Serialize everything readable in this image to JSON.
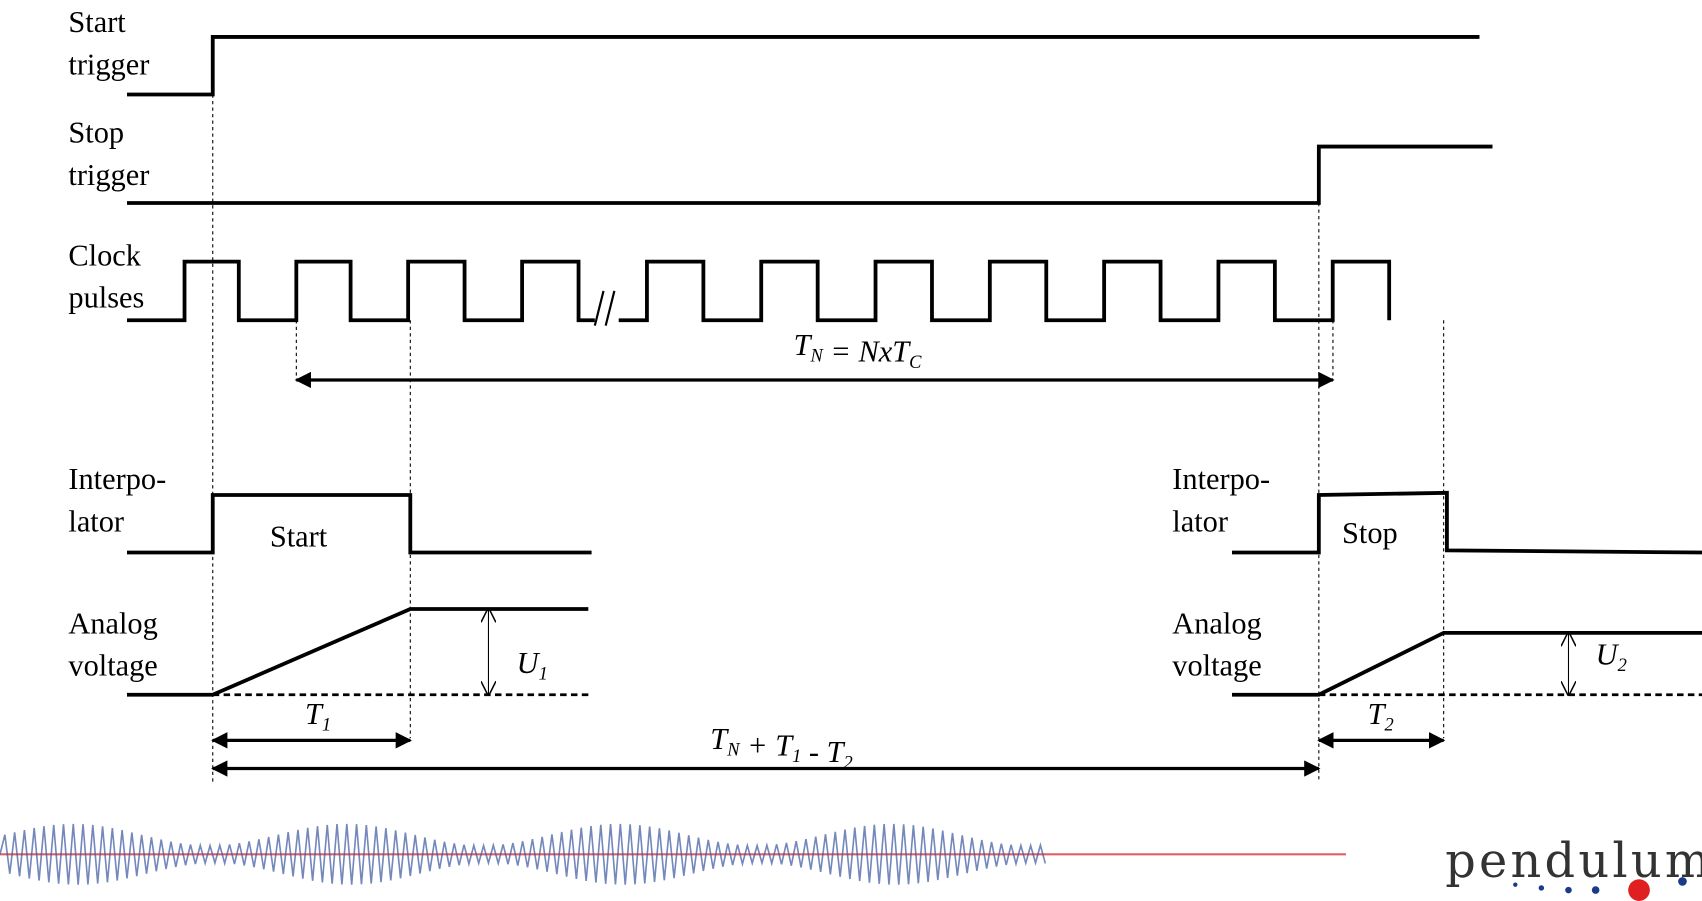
{
  "signals": [
    {
      "label": [
        "Start",
        "trigger"
      ]
    },
    {
      "label": [
        "Stop",
        "trigger"
      ]
    },
    {
      "label": [
        "Clock",
        "pulses"
      ]
    },
    {
      "label": [
        "Interpo-",
        "lator"
      ],
      "inner": "Start"
    },
    {
      "label": [
        "Analog",
        "voltage"
      ]
    },
    {
      "label": [
        "Interpo-",
        "lator"
      ],
      "inner": "Stop"
    },
    {
      "label": [
        "Analog",
        "voltage"
      ]
    }
  ],
  "annotations": {
    "tn": [
      {
        "main": "T",
        "sub": "N"
      },
      {
        "main": " = NxT",
        "sub": "C"
      }
    ],
    "u1": [
      {
        "main": "U",
        "sub": "1"
      }
    ],
    "u2": [
      {
        "main": "U",
        "sub": "2"
      }
    ],
    "t1": [
      {
        "main": "T",
        "sub": "1"
      }
    ],
    "t2": [
      {
        "main": "T",
        "sub": "2"
      }
    ],
    "total": [
      {
        "main": "T",
        "sub": "N"
      },
      {
        "main": " + T",
        "sub": "1"
      },
      {
        "main": " - T",
        "sub": "2"
      }
    ]
  },
  "logo": "pendulum"
}
